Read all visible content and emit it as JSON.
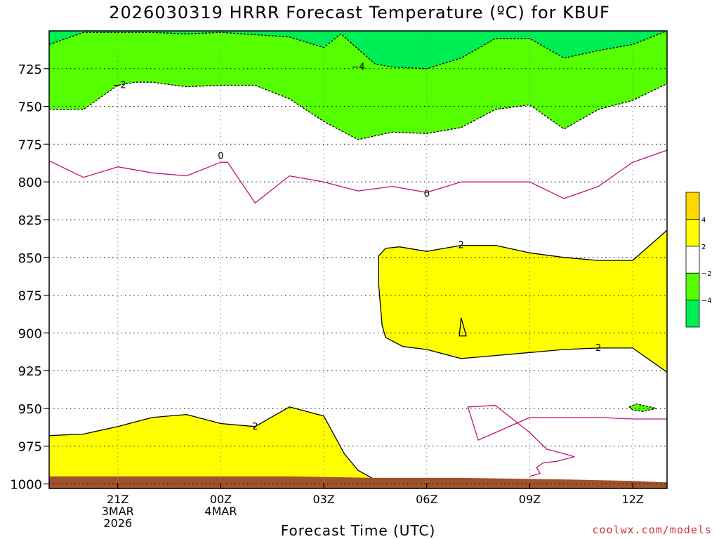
{
  "chart_data": {
    "type": "contour",
    "title": "2026030319 HRRR Forecast Temperature (ºC) for KBUF",
    "xlabel": "Forecast Time (UTC)",
    "ylabel": "",
    "source": "coolwx.com/models",
    "x_range_hours_after_19Z_3MAR": [
      0,
      18
    ],
    "y_range_mb": [
      1003,
      700
    ],
    "y_inverted": true,
    "yticks": [
      725,
      750,
      775,
      800,
      825,
      850,
      875,
      900,
      925,
      950,
      975,
      1000
    ],
    "xticks": [
      {
        "h": 2,
        "lines": [
          "21Z",
          "3MAR",
          "2026"
        ]
      },
      {
        "h": 5,
        "lines": [
          "00Z",
          "4MAR"
        ]
      },
      {
        "h": 8,
        "lines": [
          "03Z"
        ]
      },
      {
        "h": 11,
        "lines": [
          "06Z"
        ]
      },
      {
        "h": 14,
        "lines": [
          "09Z"
        ]
      },
      {
        "h": 17,
        "lines": [
          "12Z"
        ]
      }
    ],
    "colorbar": {
      "levels": [
        -6,
        -4,
        -2,
        2,
        4,
        6
      ],
      "colors": [
        "#00ee55",
        "#55ff00",
        "#ffffff",
        "#ffff00",
        "#ffd700"
      ],
      "tick_labels": [
        {
          "v": -4,
          "label": "−4"
        },
        {
          "v": -2,
          "label": "−2"
        },
        {
          "v": 2,
          "label": "2"
        },
        {
          "v": 4,
          "label": "4"
        }
      ]
    },
    "filled_regions": [
      {
        "name": "green-below-minus4",
        "color": "#00ee55",
        "points": [
          [
            0,
            709
          ],
          [
            1,
            701
          ],
          [
            3,
            701
          ],
          [
            4,
            702
          ],
          [
            5,
            701
          ],
          [
            7,
            704
          ],
          [
            8,
            711
          ],
          [
            8.5,
            702
          ],
          [
            9,
            712
          ],
          [
            9.5,
            722
          ],
          [
            10,
            724
          ],
          [
            11,
            725
          ],
          [
            12,
            718
          ],
          [
            13,
            705
          ],
          [
            14,
            705
          ],
          [
            15,
            718
          ],
          [
            16,
            713
          ],
          [
            17,
            709
          ],
          [
            18,
            700
          ],
          [
            0,
            700
          ]
        ]
      },
      {
        "name": "green-minus2-to-minus4",
        "color": "#55ff00",
        "points": [
          [
            0,
            752
          ],
          [
            1,
            752
          ],
          [
            2,
            736
          ],
          [
            2.5,
            734
          ],
          [
            3,
            734
          ],
          [
            4,
            737
          ],
          [
            5,
            736
          ],
          [
            6,
            736
          ],
          [
            7,
            745
          ],
          [
            8,
            760
          ],
          [
            9,
            772
          ],
          [
            10,
            767
          ],
          [
            11,
            768
          ],
          [
            12,
            764
          ],
          [
            13,
            752
          ],
          [
            14,
            749
          ],
          [
            15,
            765
          ],
          [
            16,
            752
          ],
          [
            17,
            746
          ],
          [
            18,
            735
          ],
          [
            18,
            700
          ],
          [
            17,
            709
          ],
          [
            16,
            713
          ],
          [
            15,
            718
          ],
          [
            14,
            705
          ],
          [
            13,
            705
          ],
          [
            12,
            718
          ],
          [
            11,
            725
          ],
          [
            10,
            724
          ],
          [
            9.5,
            722
          ],
          [
            9,
            712
          ],
          [
            8.5,
            702
          ],
          [
            8,
            711
          ],
          [
            7,
            704
          ],
          [
            5,
            701
          ],
          [
            4,
            702
          ],
          [
            3,
            701
          ],
          [
            1,
            701
          ],
          [
            0,
            709
          ]
        ]
      },
      {
        "name": "yellow-upper",
        "color": "#ffff00",
        "points": [
          [
            9.6,
            849
          ],
          [
            9.8,
            844
          ],
          [
            10.2,
            843
          ],
          [
            11,
            846
          ],
          [
            12,
            842
          ],
          [
            13,
            842
          ],
          [
            14,
            847
          ],
          [
            15,
            850
          ],
          [
            16,
            852
          ],
          [
            17,
            852
          ],
          [
            18,
            832
          ],
          [
            18,
            926
          ],
          [
            17,
            910
          ],
          [
            16,
            910
          ],
          [
            15,
            911
          ],
          [
            14,
            913
          ],
          [
            13,
            915
          ],
          [
            12,
            917
          ],
          [
            11,
            911
          ],
          [
            10.3,
            909
          ],
          [
            9.8,
            903
          ],
          [
            9.7,
            895
          ],
          [
            9.6,
            868
          ]
        ]
      },
      {
        "name": "yellow-lower",
        "color": "#ffff00",
        "points": [
          [
            0,
            968
          ],
          [
            1,
            967
          ],
          [
            2,
            962
          ],
          [
            3,
            956
          ],
          [
            4,
            954
          ],
          [
            5,
            960
          ],
          [
            6,
            962
          ],
          [
            7,
            949
          ],
          [
            8,
            955
          ],
          [
            8.6,
            980
          ],
          [
            9,
            991
          ],
          [
            9.4,
            996
          ],
          [
            9.4,
            1000
          ],
          [
            0,
            1000
          ]
        ]
      },
      {
        "name": "green-small-blob",
        "color": "#55ff00",
        "points": [
          [
            16.9,
            949
          ],
          [
            17.1,
            947
          ],
          [
            17.5,
            949
          ],
          [
            17.7,
            950
          ],
          [
            17.3,
            952
          ],
          [
            17.0,
            951
          ]
        ]
      },
      {
        "name": "ground",
        "color": "#a0522d",
        "points": [
          [
            0,
            995
          ],
          [
            7,
            995
          ],
          [
            9.5,
            996
          ],
          [
            12,
            996
          ],
          [
            15,
            997
          ],
          [
            17,
            998
          ],
          [
            18,
            999
          ],
          [
            18,
            1003
          ],
          [
            0,
            1003
          ]
        ]
      }
    ],
    "contours": [
      {
        "name": "minus4-line",
        "color": "#000000",
        "dashed": true,
        "points": [
          [
            0,
            709
          ],
          [
            1,
            701
          ],
          [
            3,
            701
          ],
          [
            4,
            702
          ],
          [
            5,
            701
          ],
          [
            7,
            704
          ],
          [
            8,
            711
          ],
          [
            8.5,
            702
          ],
          [
            9,
            712
          ],
          [
            9.5,
            722
          ],
          [
            10,
            724
          ],
          [
            11,
            725
          ],
          [
            12,
            718
          ],
          [
            13,
            705
          ],
          [
            14,
            705
          ],
          [
            15,
            718
          ],
          [
            16,
            713
          ],
          [
            17,
            709
          ],
          [
            18,
            700
          ]
        ]
      },
      {
        "name": "minus2-line",
        "color": "#000000",
        "dashed": true,
        "points": [
          [
            0,
            752
          ],
          [
            1,
            752
          ],
          [
            2,
            736
          ],
          [
            2.5,
            734
          ],
          [
            3,
            734
          ],
          [
            4,
            737
          ],
          [
            5,
            736
          ],
          [
            6,
            736
          ],
          [
            7,
            745
          ],
          [
            8,
            760
          ],
          [
            9,
            772
          ],
          [
            10,
            767
          ],
          [
            11,
            768
          ],
          [
            12,
            764
          ],
          [
            13,
            752
          ],
          [
            14,
            749
          ],
          [
            15,
            765
          ],
          [
            16,
            752
          ],
          [
            17,
            746
          ],
          [
            18,
            735
          ]
        ]
      },
      {
        "name": "zero-line",
        "color": "#c0147a",
        "dashed": false,
        "points": [
          [
            0,
            786
          ],
          [
            1,
            797
          ],
          [
            2,
            790
          ],
          [
            3,
            794
          ],
          [
            4,
            796
          ],
          [
            5,
            787
          ],
          [
            5.2,
            787
          ],
          [
            6,
            814
          ],
          [
            7,
            796
          ],
          [
            8,
            800
          ],
          [
            9,
            806
          ],
          [
            10,
            803
          ],
          [
            11,
            807
          ],
          [
            12,
            800
          ],
          [
            13,
            800
          ],
          [
            14,
            800
          ],
          [
            15,
            811
          ],
          [
            16,
            803
          ],
          [
            17,
            787
          ],
          [
            18,
            779
          ]
        ]
      },
      {
        "name": "zero-line-lower",
        "color": "#c0147a",
        "dashed": false,
        "points": [
          [
            18,
            957
          ],
          [
            17,
            957
          ],
          [
            16,
            956
          ],
          [
            15,
            956
          ],
          [
            14,
            956
          ],
          [
            13,
            966
          ],
          [
            12.5,
            971
          ],
          [
            12.2,
            949
          ],
          [
            13,
            948
          ],
          [
            13.5,
            957
          ],
          [
            14,
            966
          ],
          [
            14.5,
            977
          ],
          [
            15,
            980
          ],
          [
            15.3,
            982
          ],
          [
            14.8,
            985
          ],
          [
            14.4,
            986
          ],
          [
            14.2,
            989
          ],
          [
            14.3,
            993
          ],
          [
            14.0,
            995
          ]
        ]
      },
      {
        "name": "plus2-upper",
        "color": "#000000",
        "dashed": false,
        "points": [
          [
            9.6,
            849
          ],
          [
            9.8,
            844
          ],
          [
            10.2,
            843
          ],
          [
            11,
            846
          ],
          [
            12,
            842
          ],
          [
            13,
            842
          ],
          [
            14,
            847
          ],
          [
            15,
            850
          ],
          [
            16,
            852
          ],
          [
            17,
            852
          ],
          [
            18,
            832
          ]
        ]
      },
      {
        "name": "plus2-upper-bottom",
        "color": "#000000",
        "dashed": false,
        "points": [
          [
            18,
            926
          ],
          [
            17,
            910
          ],
          [
            16,
            910
          ],
          [
            15,
            911
          ],
          [
            14,
            913
          ],
          [
            13,
            915
          ],
          [
            12,
            917
          ],
          [
            11,
            911
          ],
          [
            10.3,
            909
          ],
          [
            9.8,
            903
          ],
          [
            9.7,
            895
          ],
          [
            9.6,
            868
          ],
          [
            9.6,
            849
          ]
        ]
      },
      {
        "name": "plus2-small-spike",
        "color": "#000000",
        "dashed": false,
        "points": [
          [
            12.0,
            890
          ],
          [
            12.15,
            902
          ],
          [
            11.95,
            902
          ],
          [
            12.0,
            890
          ]
        ]
      },
      {
        "name": "plus2-lower",
        "color": "#000000",
        "dashed": false,
        "points": [
          [
            0,
            968
          ],
          [
            1,
            967
          ],
          [
            2,
            962
          ],
          [
            3,
            956
          ],
          [
            4,
            954
          ],
          [
            5,
            960
          ],
          [
            6,
            962
          ],
          [
            7,
            949
          ],
          [
            8,
            955
          ],
          [
            8.6,
            980
          ],
          [
            9,
            991
          ],
          [
            9.4,
            996
          ]
        ]
      },
      {
        "name": "minus2-small-blob",
        "color": "#000000",
        "dashed": true,
        "points": [
          [
            16.9,
            949
          ],
          [
            17.1,
            947
          ],
          [
            17.5,
            949
          ],
          [
            17.7,
            950
          ],
          [
            17.3,
            952
          ],
          [
            17.0,
            951
          ],
          [
            16.9,
            949
          ]
        ]
      }
    ],
    "contour_labels": [
      {
        "text": "−2",
        "h": 2.05,
        "p": 736
      },
      {
        "text": "−4",
        "h": 9.0,
        "p": 724
      },
      {
        "text": "0",
        "h": 5.0,
        "p": 783
      },
      {
        "text": "0",
        "h": 11.0,
        "p": 808
      },
      {
        "text": "2",
        "h": 12.0,
        "p": 842
      },
      {
        "text": "2",
        "h": 6.0,
        "p": 962
      },
      {
        "text": "2",
        "h": 16.0,
        "p": 910
      }
    ],
    "grid": true
  }
}
